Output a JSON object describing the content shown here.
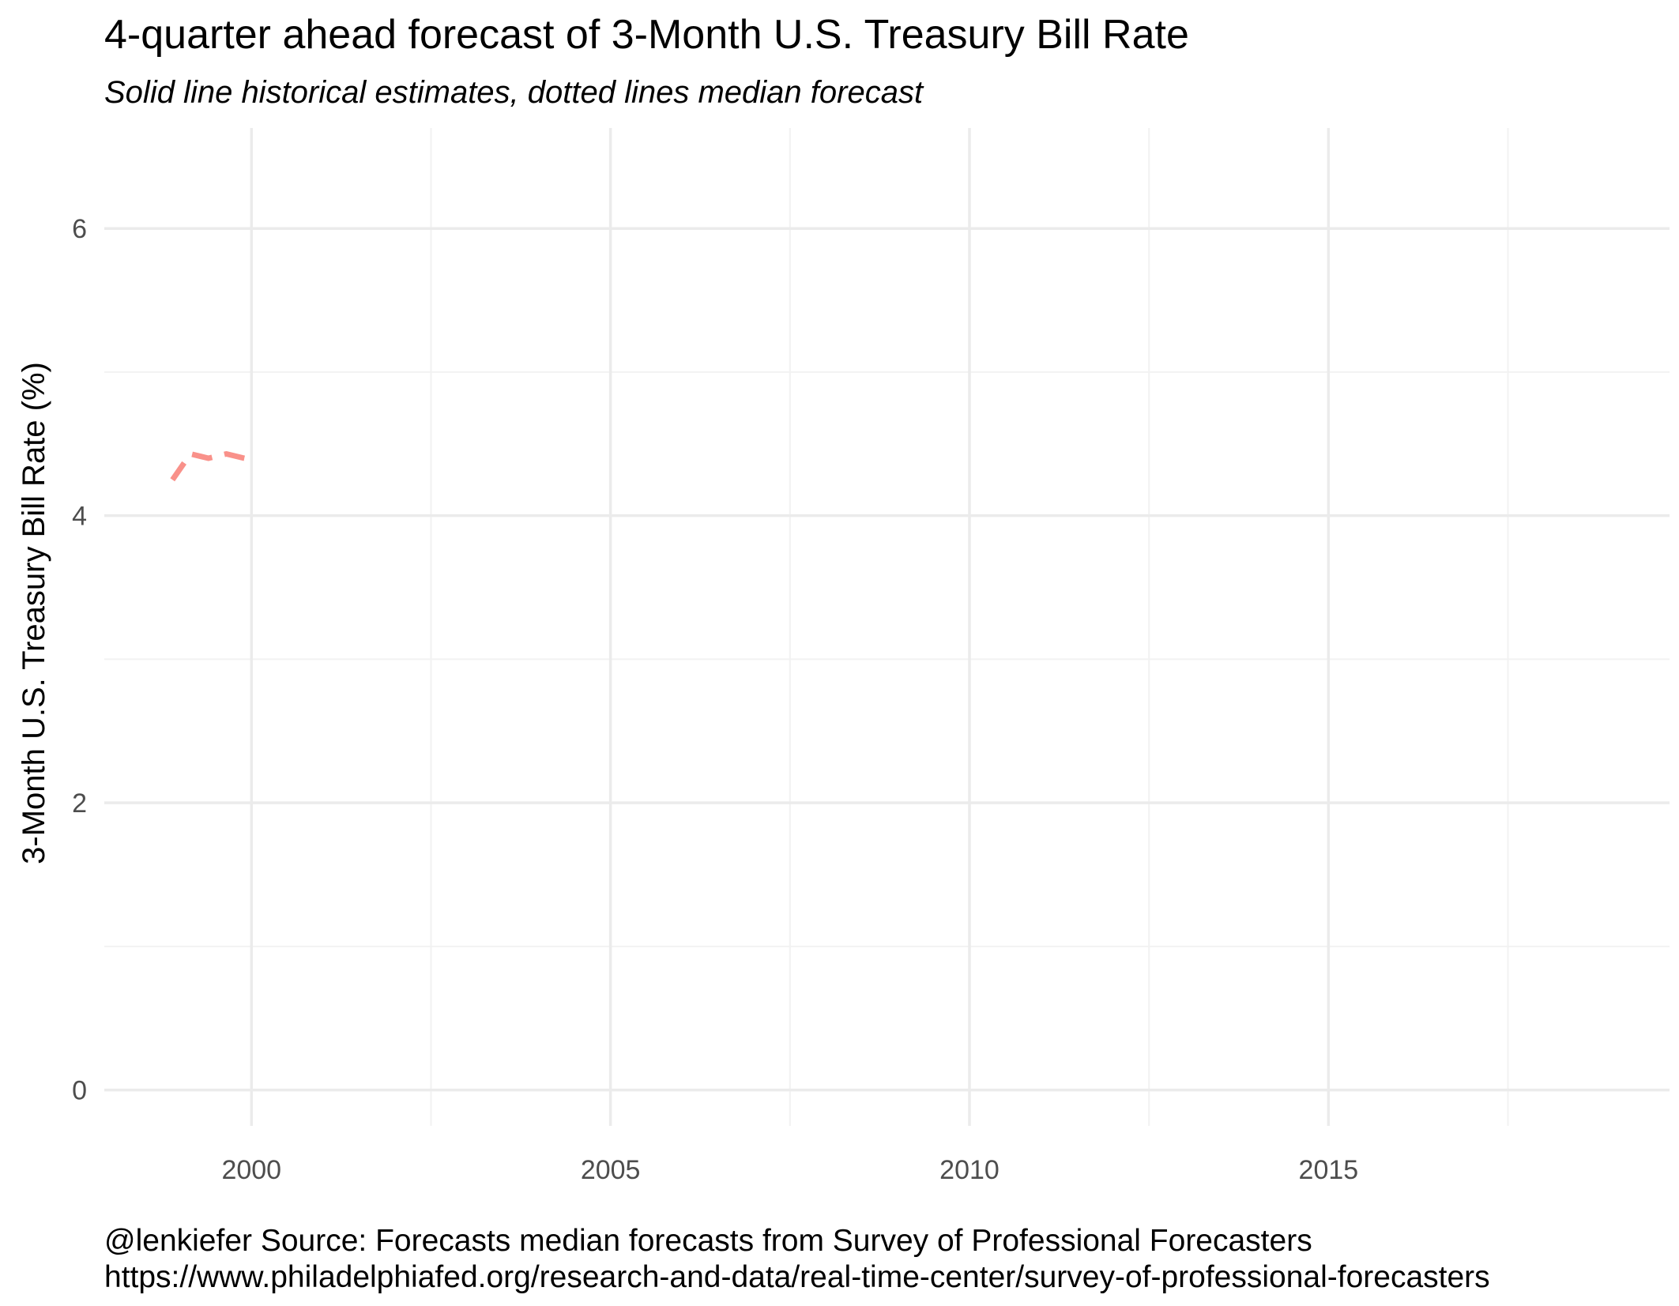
{
  "chart_data": {
    "type": "line",
    "title": "4-quarter ahead forecast of 3-Month U.S. Treasury Bill Rate",
    "subtitle": "Solid line historical estimates, dotted lines median forecast",
    "xlabel": "",
    "ylabel": "3-Month U.S. Treasury Bill Rate (%)",
    "xlim": [
      1997.95,
      2019.75
    ],
    "ylim": [
      -0.25,
      6.7
    ],
    "x_ticks": [
      2000,
      2005,
      2010,
      2015
    ],
    "x_tick_labels": [
      "2000",
      "2005",
      "2010",
      "2015"
    ],
    "y_ticks": [
      0,
      2,
      4,
      6
    ],
    "y_tick_labels": [
      "0",
      "2",
      "4",
      "6"
    ],
    "y_minor_ticks": [
      1,
      3,
      5
    ],
    "x_minor_ticks": [
      2002.5,
      2007.5,
      2012.5,
      2017.5
    ],
    "grid": true,
    "series": [
      {
        "line_style": "dashed",
        "color": "#F8766D",
        "x": [
          1998.9,
          1999.15,
          1999.4,
          1999.65,
          1999.9,
          2000.0
        ],
        "y": [
          4.25,
          4.43,
          4.4,
          4.43,
          4.4,
          4.39
        ]
      }
    ]
  },
  "caption": {
    "line1": "@lenkiefer Source: Forecasts median forecasts from Survey of Professional Forecasters",
    "line2": "https://www.philadelphiafed.org/research-and-data/real-time-center/survey-of-professional-forecasters"
  },
  "colors": {
    "grid_major": "#ebebeb",
    "grid_minor": "#f2f2f2",
    "tick_text": "#4d4d4d"
  }
}
